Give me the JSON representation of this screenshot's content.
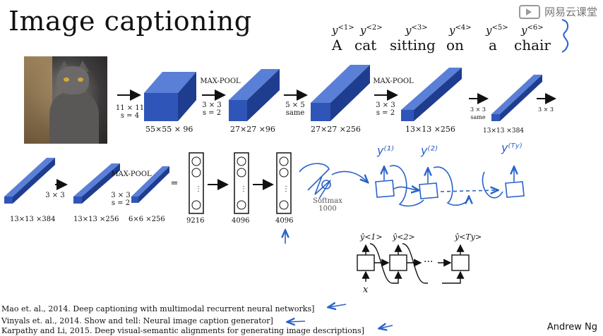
{
  "title": "Image captioning",
  "brand": "网易云课堂",
  "author": "Andrew Ng",
  "sentence": {
    "words": [
      "A",
      "cat",
      "sitting",
      "on",
      "a",
      "chair"
    ],
    "labels": [
      "y",
      "y",
      "y",
      "y",
      "y",
      "y"
    ],
    "label_sups": [
      "<1>",
      "<2>",
      "<3>",
      "<4>",
      "<5>",
      "<6>"
    ]
  },
  "row1": {
    "ops": [
      "11 × 11",
      "s = 4",
      "MAX-POOL",
      "3 × 3",
      "s = 2",
      "5 × 5",
      "same",
      "MAX-POOL",
      "3 × 3",
      "s = 2",
      "3 × 3",
      "same",
      "3 × 3"
    ],
    "dims": [
      "55×55 × 96",
      "27×27 ×96",
      "27×27 ×256",
      "13×13 ×256",
      "13×13 ×384"
    ]
  },
  "row2": {
    "ops": [
      "3 × 3",
      "MAX-POOL",
      "3 × 3",
      "s = 2",
      "="
    ],
    "dims": [
      "13×13 ×384",
      "13×13 ×256",
      "6×6 ×256"
    ],
    "fc": [
      "9216",
      "4096",
      "4096"
    ],
    "softmax": "Softmax",
    "softmax_n": "1000"
  },
  "handwritten": {
    "y1": "y⁽¹⁾",
    "y2": "y⁽²⁾",
    "yT": "y⁽ᵀʸ⁾"
  },
  "rnn": {
    "y1": "ŷ<1>",
    "y2": "ŷ<2>",
    "yT": "ŷ<Ty>",
    "x": "x",
    "dots": "···"
  },
  "references": [
    "Mao et. al., 2014. Deep captioning with multimodal recurrent neural networks]",
    "Vinyals et. al., 2014. Show and tell: Neural image caption generator]",
    "Karpathy and Li, 2015. Deep visual-semantic alignments for generating image descriptions]"
  ],
  "colors": {
    "conv_front": "#2f55b8",
    "conv_side": "#1f3d8f",
    "conv_top": "#5a7fd6",
    "ink": "#2a62c9"
  }
}
